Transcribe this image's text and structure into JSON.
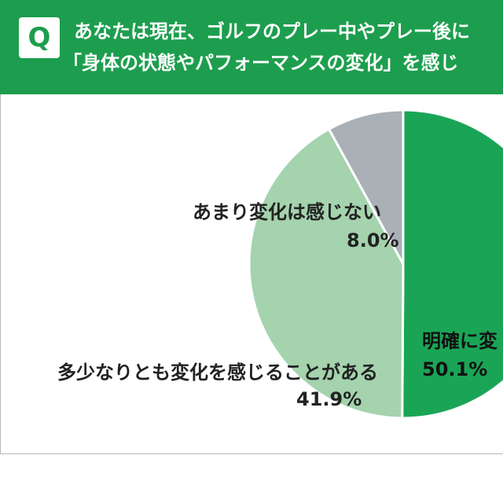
{
  "question": {
    "badge": "Q",
    "line1": "あなたは現在、ゴルフのプレー中やプレー後に",
    "line2": "「身体の状態やパフォーマンスの変化」を感じ"
  },
  "colors": {
    "header": "#1d9e4e",
    "clear_change": "#1aa556",
    "some_change": "#a4d3ad",
    "little_change": "#a9b0b6"
  },
  "chart_data": {
    "type": "pie",
    "title": "",
    "slices": [
      {
        "label": "明確に変",
        "value": 50.1,
        "value_label": "50.1%",
        "color": "#1aa556"
      },
      {
        "label": "多少なりとも変化を感じることがある",
        "value": 41.9,
        "value_label": "41.9%",
        "color": "#a4d3ad"
      },
      {
        "label": "あまり変化は感じない",
        "value": 8.0,
        "value_label": "8.0%",
        "color": "#a9b0b6"
      }
    ]
  }
}
